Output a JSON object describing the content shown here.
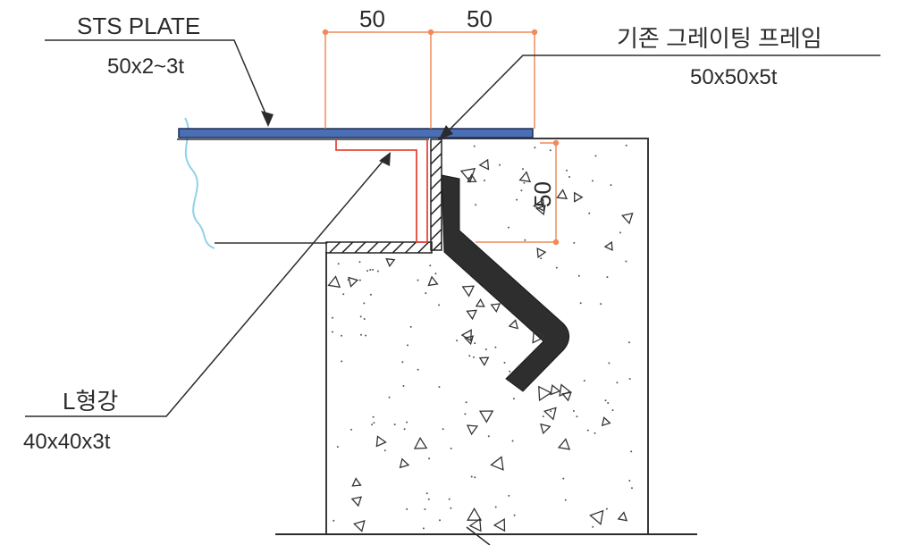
{
  "labels": {
    "sts_plate_title": "STS PLATE",
    "sts_plate_spec": "50x2~3t",
    "frame_title": "기존 그레이팅 프레임",
    "frame_spec": "50x50x5t",
    "angle_title": "L형강",
    "angle_spec": "40x40x3t"
  },
  "dimensions": {
    "top_left": "50",
    "top_right": "50",
    "vertical": "50"
  },
  "colors": {
    "plate": "#4a6fb5",
    "red_outline": "#e8473a",
    "dim_line": "#f08a5a",
    "leader": "#2b2b2b",
    "anchor": "#2e2e2e",
    "concrete_edge": "#3a3a3a",
    "wave_line": "#8fd3e6"
  }
}
